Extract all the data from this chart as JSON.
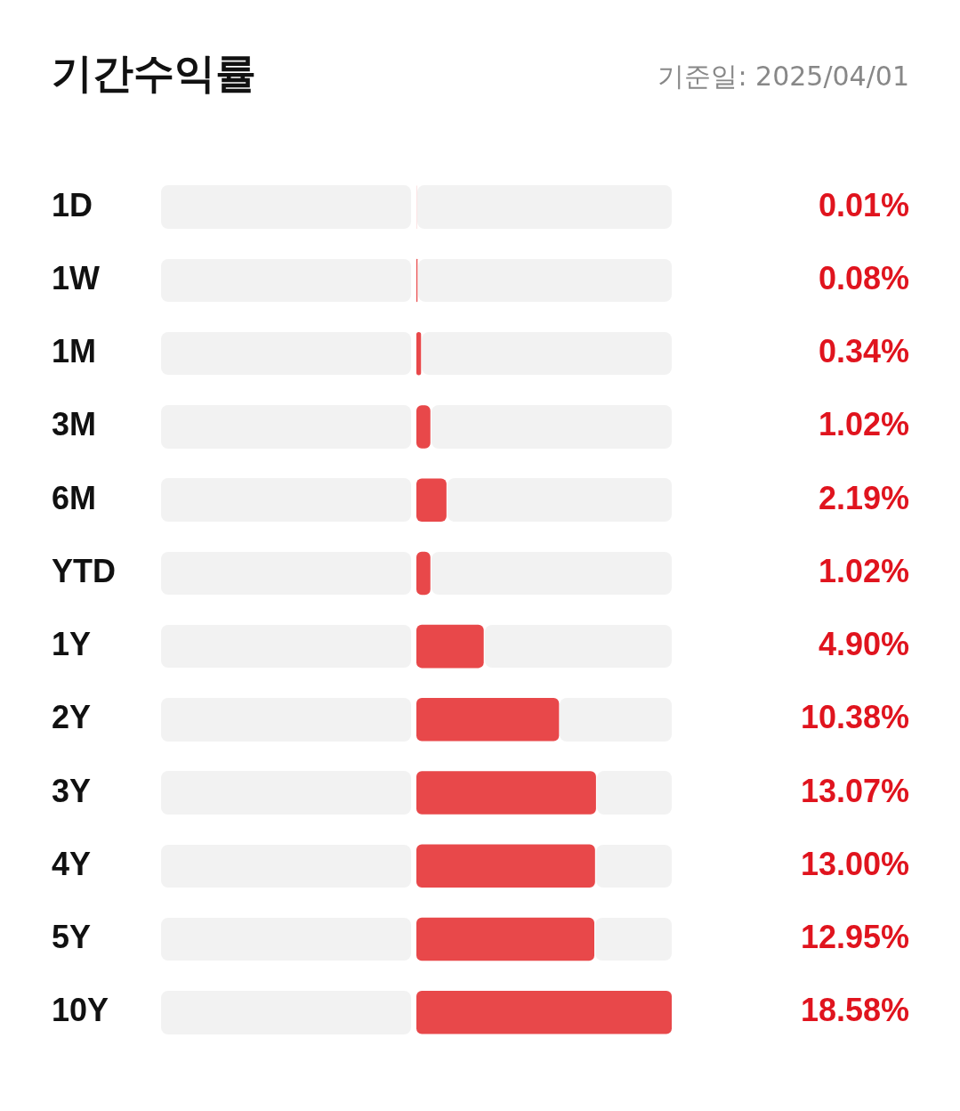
{
  "chart_data": {
    "type": "bar",
    "orientation": "horizontal",
    "title": "기간수익률",
    "subtitle": "기준일: 2025/04/01",
    "categories": [
      "1D",
      "1W",
      "1M",
      "3M",
      "6M",
      "YTD",
      "1Y",
      "2Y",
      "3Y",
      "4Y",
      "5Y",
      "10Y"
    ],
    "values": [
      0.01,
      0.08,
      0.34,
      1.02,
      2.19,
      1.02,
      4.9,
      10.38,
      13.07,
      13.0,
      12.95,
      18.58
    ],
    "value_labels": [
      "0.01%",
      "0.08%",
      "0.34%",
      "1.02%",
      "2.19%",
      "1.02%",
      "4.90%",
      "10.38%",
      "13.07%",
      "13.00%",
      "12.95%",
      "18.58%"
    ],
    "color": "#e8484a",
    "tick_labels": "y",
    "legend": false
  }
}
